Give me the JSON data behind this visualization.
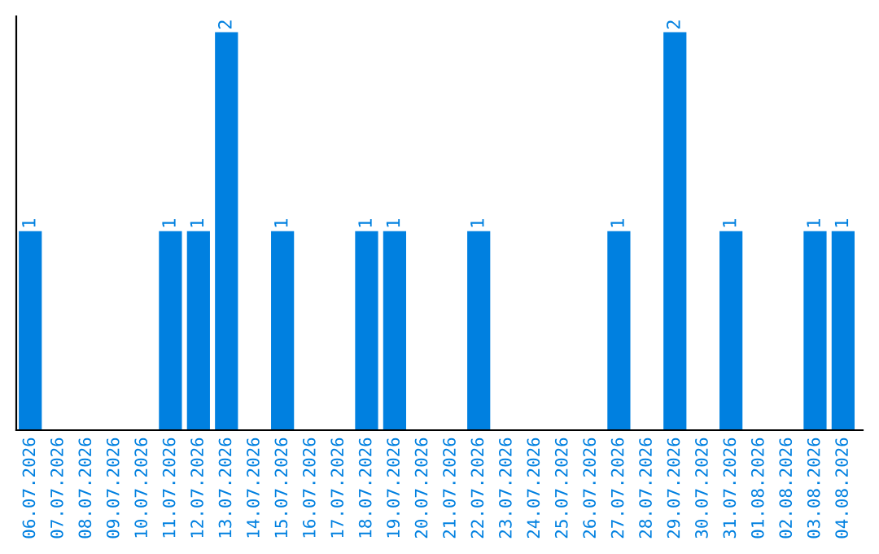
{
  "chart_data": {
    "type": "bar",
    "categories": [
      "06.07.2026",
      "07.07.2026",
      "08.07.2026",
      "09.07.2026",
      "10.07.2026",
      "11.07.2026",
      "12.07.2026",
      "13.07.2026",
      "14.07.2026",
      "15.07.2026",
      "16.07.2026",
      "17.07.2026",
      "18.07.2026",
      "19.07.2026",
      "20.07.2026",
      "21.07.2026",
      "22.07.2026",
      "23.07.2026",
      "24.07.2026",
      "25.07.2026",
      "26.07.2026",
      "27.07.2026",
      "28.07.2026",
      "29.07.2026",
      "30.07.2026",
      "31.07.2026",
      "01.08.2026",
      "02.08.2026",
      "03.08.2026",
      "04.08.2026"
    ],
    "values": [
      1,
      0,
      0,
      0,
      0,
      1,
      1,
      2,
      0,
      1,
      0,
      0,
      1,
      1,
      0,
      0,
      1,
      0,
      0,
      0,
      0,
      1,
      0,
      2,
      0,
      1,
      0,
      0,
      1,
      1
    ],
    "value_labels": [
      "1",
      null,
      null,
      null,
      null,
      "1",
      "1",
      "2",
      null,
      "1",
      null,
      null,
      "1",
      "1",
      null,
      null,
      "1",
      null,
      null,
      null,
      null,
      "1",
      null,
      "2",
      null,
      "1",
      null,
      null,
      "1",
      "1"
    ],
    "color": "#0080e0",
    "tick_labels": "x",
    "grid": false,
    "legend": false
  }
}
